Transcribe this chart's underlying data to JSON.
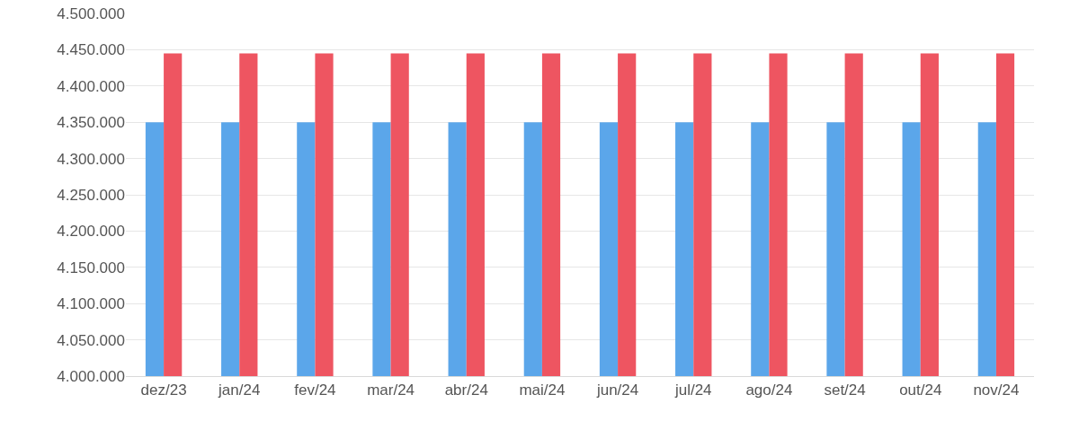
{
  "chart_data": {
    "type": "bar",
    "categories": [
      "dez/23",
      "jan/24",
      "fev/24",
      "mar/24",
      "abr/24",
      "mai/24",
      "jun/24",
      "jul/24",
      "ago/24",
      "set/24",
      "out/24",
      "nov/24"
    ],
    "series": [
      {
        "color": "#5ba6ea",
        "values": [
          4350000,
          4350000,
          4350000,
          4350000,
          4350000,
          4350000,
          4350000,
          4350000,
          4350000,
          4350000,
          4350000,
          4350000
        ]
      },
      {
        "color": "#ee5561",
        "values": [
          4445000,
          4445000,
          4445000,
          4445000,
          4445000,
          4445000,
          4445000,
          4445000,
          4445000,
          4445000,
          4445000,
          4445000
        ]
      }
    ],
    "ylim": [
      4000000,
      4500000
    ],
    "yticks": [
      {
        "value": 4000000,
        "label": "4.000.000"
      },
      {
        "value": 4050000,
        "label": "4.050.000"
      },
      {
        "value": 4100000,
        "label": "4.100.000"
      },
      {
        "value": 4150000,
        "label": "4.150.000"
      },
      {
        "value": 4200000,
        "label": "4.200.000"
      },
      {
        "value": 4250000,
        "label": "4.250.000"
      },
      {
        "value": 4300000,
        "label": "4.300.000"
      },
      {
        "value": 4350000,
        "label": "4.350.000"
      },
      {
        "value": 4400000,
        "label": "4.400.000"
      },
      {
        "value": 4450000,
        "label": "4.450.000"
      },
      {
        "value": 4500000,
        "label": "4.500.000"
      }
    ],
    "grid": "y"
  }
}
